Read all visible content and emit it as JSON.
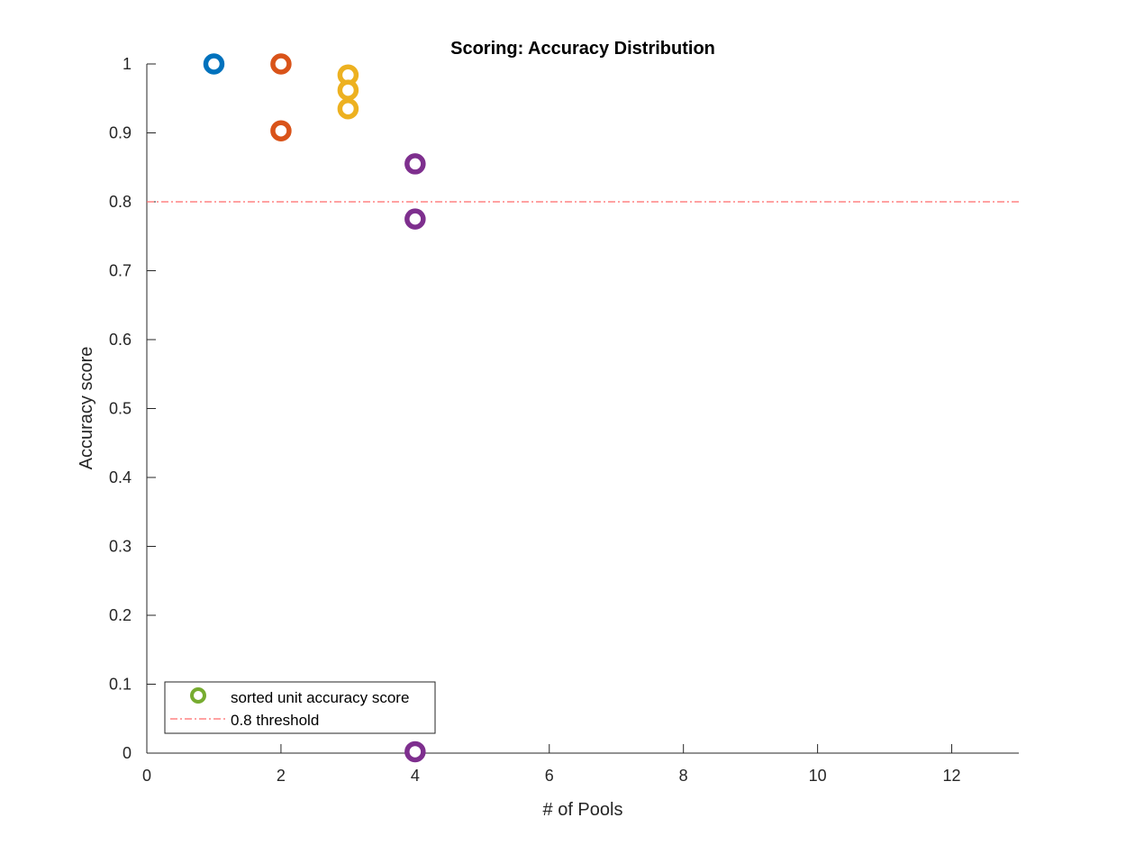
{
  "chart_data": {
    "type": "scatter",
    "title": "Scoring: Accuracy Distribution",
    "xlabel": "# of Pools",
    "ylabel": "Accuracy score",
    "xlim": [
      0,
      13
    ],
    "ylim": [
      0,
      1
    ],
    "xticks": [
      0,
      2,
      4,
      6,
      8,
      10,
      12
    ],
    "yticks": [
      0,
      0.1,
      0.2,
      0.3,
      0.4,
      0.5,
      0.6,
      0.7,
      0.8,
      0.9,
      1
    ],
    "grid": false,
    "legend_position": "bottom-left",
    "legend": [
      {
        "label": "sorted unit accuracy score",
        "marker": "circle",
        "color": "#77AC30"
      },
      {
        "label": "0.8 threshold",
        "line": "dash-dot",
        "color": "#FF6B6B"
      }
    ],
    "threshold": {
      "y": 0.8,
      "color": "#FF6B6B"
    },
    "series": [
      {
        "color": "#0072BD",
        "points": [
          {
            "x": 1,
            "y": 1.0
          }
        ]
      },
      {
        "color": "#D95319",
        "points": [
          {
            "x": 2,
            "y": 1.0
          },
          {
            "x": 2,
            "y": 0.903
          }
        ]
      },
      {
        "color": "#EDB120",
        "points": [
          {
            "x": 3,
            "y": 0.984
          },
          {
            "x": 3,
            "y": 0.962
          },
          {
            "x": 3,
            "y": 0.935
          }
        ]
      },
      {
        "color": "#7E2F8E",
        "points": [
          {
            "x": 4,
            "y": 0.855
          },
          {
            "x": 4,
            "y": 0.775
          },
          {
            "x": 4,
            "y": 0.002
          }
        ]
      }
    ]
  }
}
